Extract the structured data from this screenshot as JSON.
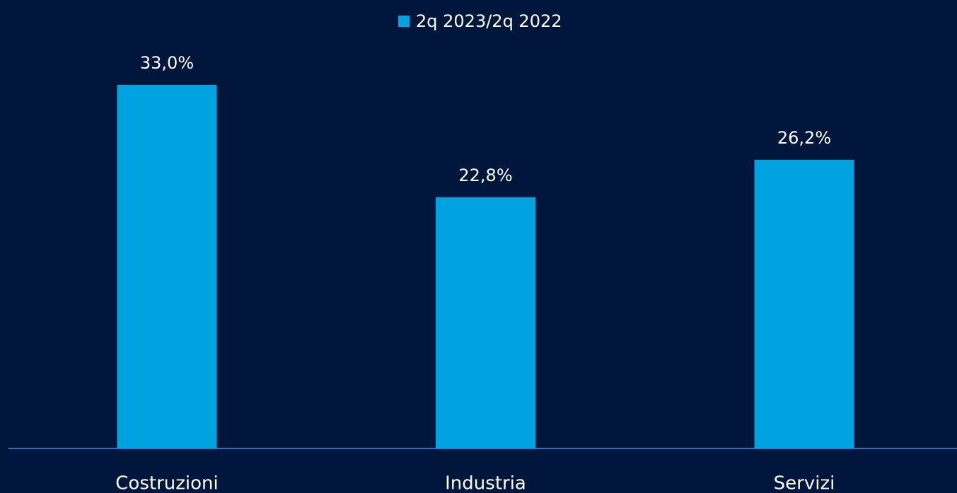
{
  "chart_data": {
    "type": "bar",
    "categories": [
      "Costruzioni",
      "Industria",
      "Servizi"
    ],
    "series": [
      {
        "name": "2q 2023/2q 2022",
        "color": "#00a3e0",
        "values": [
          33.0,
          22.8,
          26.2
        ],
        "value_labels": [
          "33,0%",
          "22,8%",
          "26,2%"
        ]
      }
    ],
    "legend": "top"
  }
}
